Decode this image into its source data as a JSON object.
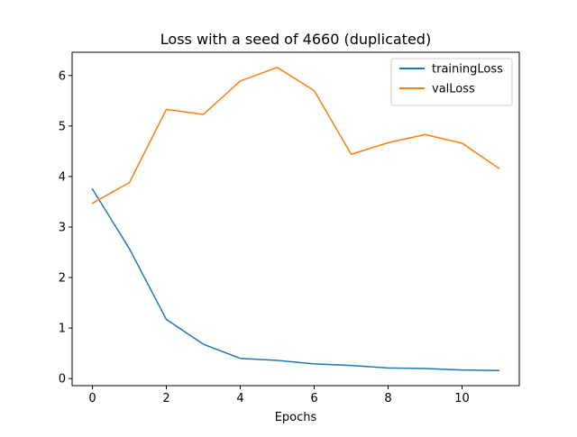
{
  "chart_data": {
    "type": "line",
    "title": "Loss with a seed of 4660 (duplicated)",
    "xlabel": "Epochs",
    "ylabel": "",
    "x": [
      0,
      1,
      2,
      3,
      4,
      5,
      6,
      7,
      8,
      9,
      10,
      11
    ],
    "series": [
      {
        "name": "trainingLoss",
        "color": "#1f77b4",
        "values": [
          3.75,
          2.57,
          1.17,
          0.68,
          0.4,
          0.36,
          0.29,
          0.26,
          0.21,
          0.2,
          0.17,
          0.16
        ]
      },
      {
        "name": "valLoss",
        "color": "#ff7f0e",
        "values": [
          3.47,
          3.88,
          5.33,
          5.23,
          5.89,
          6.16,
          5.7,
          4.44,
          4.67,
          4.83,
          4.66,
          4.16
        ]
      }
    ],
    "xlim": [
      -0.55,
      11.55
    ],
    "ylim": [
      -0.14,
      6.46
    ],
    "xticks": [
      0,
      2,
      4,
      6,
      8,
      10
    ],
    "yticks": [
      0,
      1,
      2,
      3,
      4,
      5,
      6
    ],
    "grid": false,
    "legend_position": "top-right"
  }
}
